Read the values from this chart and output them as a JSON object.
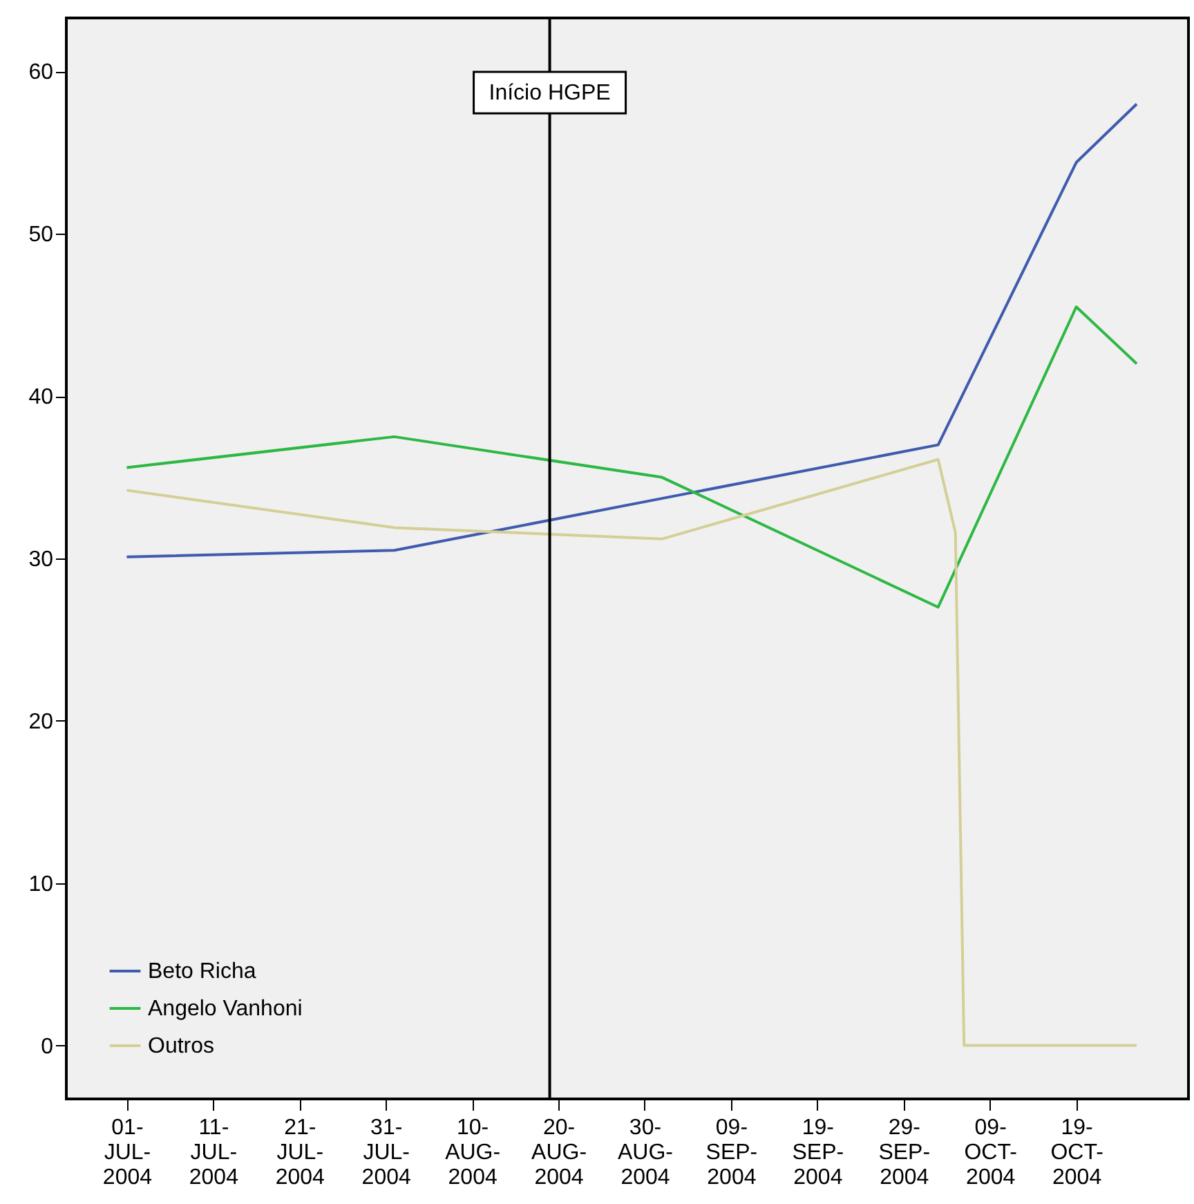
{
  "chart_data": {
    "type": "line",
    "xlim": [
      "2004-06-24",
      "2004-11-01"
    ],
    "xticks": [
      {
        "value": "2004-07-01",
        "label": "01-JUL-2004"
      },
      {
        "value": "2004-07-11",
        "label": "11-JUL-2004"
      },
      {
        "value": "2004-07-21",
        "label": "21-JUL-2004"
      },
      {
        "value": "2004-07-31",
        "label": "31-JUL-2004"
      },
      {
        "value": "2004-08-10",
        "label": "10-AUG-2004"
      },
      {
        "value": "2004-08-20",
        "label": "20-AUG-2004"
      },
      {
        "value": "2004-08-30",
        "label": "30-AUG-2004"
      },
      {
        "value": "2004-09-09",
        "label": "09-SEP-2004"
      },
      {
        "value": "2004-09-19",
        "label": "19-SEP-2004"
      },
      {
        "value": "2004-09-29",
        "label": "29-SEP-2004"
      },
      {
        "value": "2004-10-09",
        "label": "09-OCT-2004"
      },
      {
        "value": "2004-10-19",
        "label": "19-OCT-2004"
      }
    ],
    "ylim": [
      -3.3,
      63.3
    ],
    "yticks": [
      0,
      10,
      20,
      30,
      40,
      50,
      60
    ],
    "series": [
      {
        "name": "Beto Richa",
        "color": "#3f5bae",
        "x": [
          "2004-07-01",
          "2004-08-01",
          "2004-09-01",
          "2004-10-03",
          "2004-10-19",
          "2004-10-26"
        ],
        "values": [
          30.1,
          30.5,
          33.7,
          37.0,
          54.4,
          58.0
        ]
      },
      {
        "name": "Angelo Vanhoni",
        "color": "#2db844",
        "x": [
          "2004-07-01",
          "2004-08-01",
          "2004-09-01",
          "2004-10-03",
          "2004-10-19",
          "2004-10-26"
        ],
        "values": [
          35.6,
          37.5,
          35.0,
          27.0,
          45.5,
          42.0
        ]
      },
      {
        "name": "Outros",
        "color": "#d4cf96",
        "x": [
          "2004-07-01",
          "2004-08-01",
          "2004-09-01",
          "2004-10-03",
          "2004-10-05",
          "2004-10-06",
          "2004-10-26"
        ],
        "values": [
          34.2,
          31.9,
          31.2,
          36.1,
          31.6,
          0,
          0
        ]
      }
    ],
    "ref_lines": [
      {
        "axis": "x",
        "value": "2004-08-19",
        "label": "Início HGPE",
        "color": "#000000"
      }
    ],
    "grid": false,
    "legend": "bottom left",
    "line_style": "solid",
    "marker": "none"
  }
}
